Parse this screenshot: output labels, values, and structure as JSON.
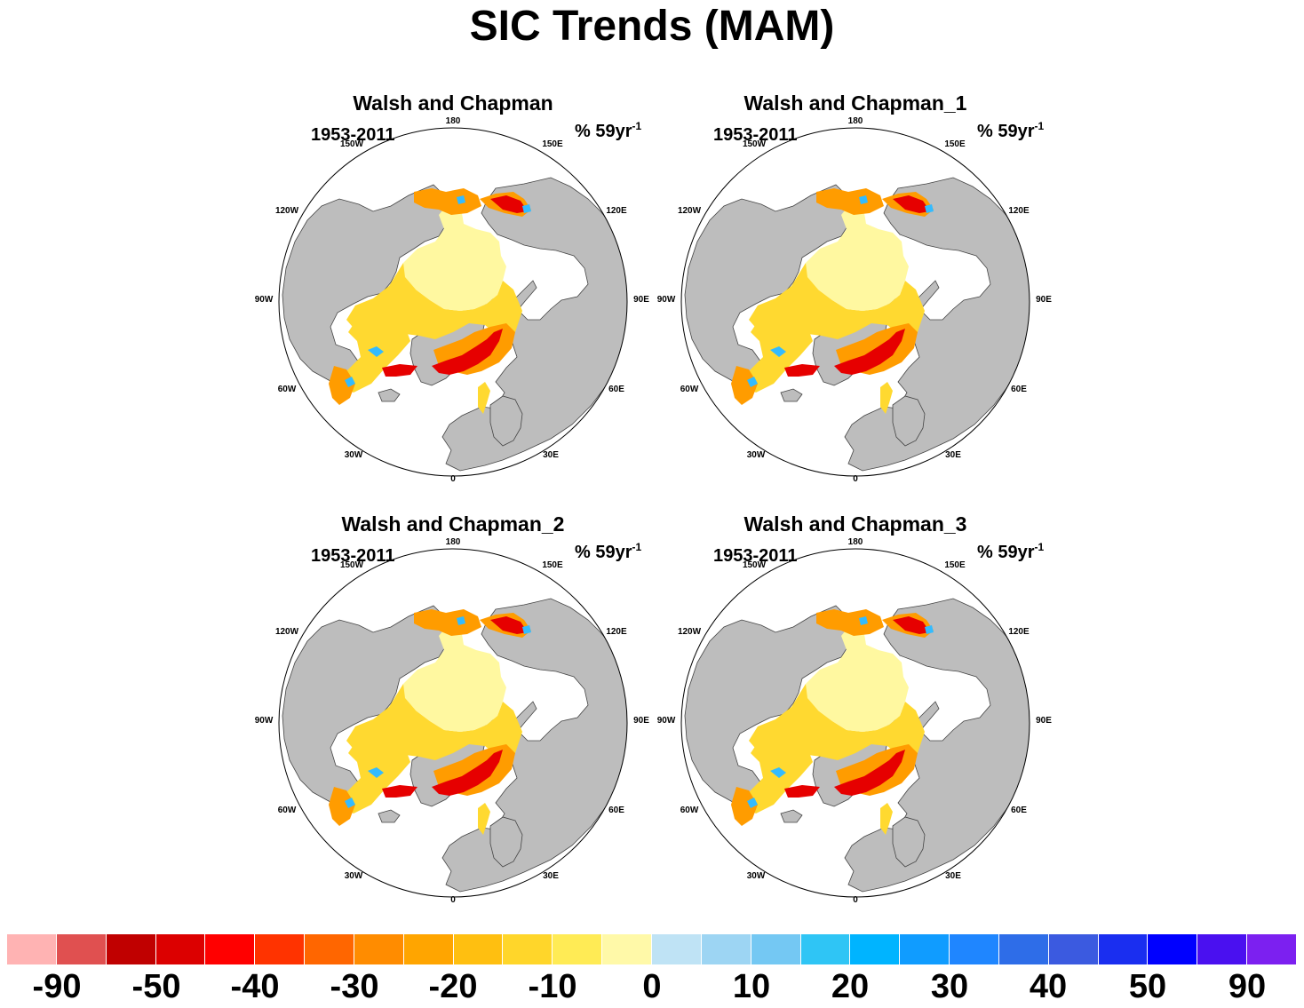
{
  "title": "SIC Trends (MAM)",
  "panels": [
    {
      "title": "Walsh and Chapman",
      "period": "1953-2011",
      "units": "% 59yr",
      "units_exp": "-1"
    },
    {
      "title": "Walsh and Chapman_1",
      "period": "1953-2011",
      "units": "% 59yr",
      "units_exp": "-1"
    },
    {
      "title": "Walsh and Chapman_2",
      "period": "1953-2011",
      "units": "% 59yr",
      "units_exp": "-1"
    },
    {
      "title": "Walsh and Chapman_3",
      "period": "1953-2011",
      "units": "% 59yr",
      "units_exp": "-1"
    }
  ],
  "longitude_labels": [
    "180",
    "150E",
    "120E",
    "90E",
    "60E",
    "30E",
    "0",
    "30W",
    "60W",
    "90W",
    "120W",
    "150W"
  ],
  "colors": {
    "land": "#bdbdbd",
    "ocean": "#ffffff",
    "ice_central": "#fff8a0",
    "ice_yellow": "#ffd930",
    "ice_orange": "#ff9c00",
    "ice_red": "#e60000",
    "ice_blue": "#33bbff"
  },
  "colorbar": {
    "colors": [
      "#ffb3b3",
      "#e05050",
      "#c00000",
      "#dc0000",
      "#ff0000",
      "#ff3300",
      "#ff6600",
      "#ff8c00",
      "#ffa500",
      "#ffbf10",
      "#ffd62a",
      "#ffeb55",
      "#fff9a8",
      "#bfe3f5",
      "#9dd5f3",
      "#74c8f3",
      "#2fc5f5",
      "#00b4ff",
      "#109cff",
      "#1f86ff",
      "#2e6de8",
      "#3b5ae0",
      "#1a2ef0",
      "#0000ff",
      "#4a10f0",
      "#7c20f0"
    ],
    "labels": [
      "-90",
      "-50",
      "-40",
      "-30",
      "-20",
      "-10",
      "0",
      "10",
      "20",
      "30",
      "40",
      "50",
      "90"
    ]
  }
}
